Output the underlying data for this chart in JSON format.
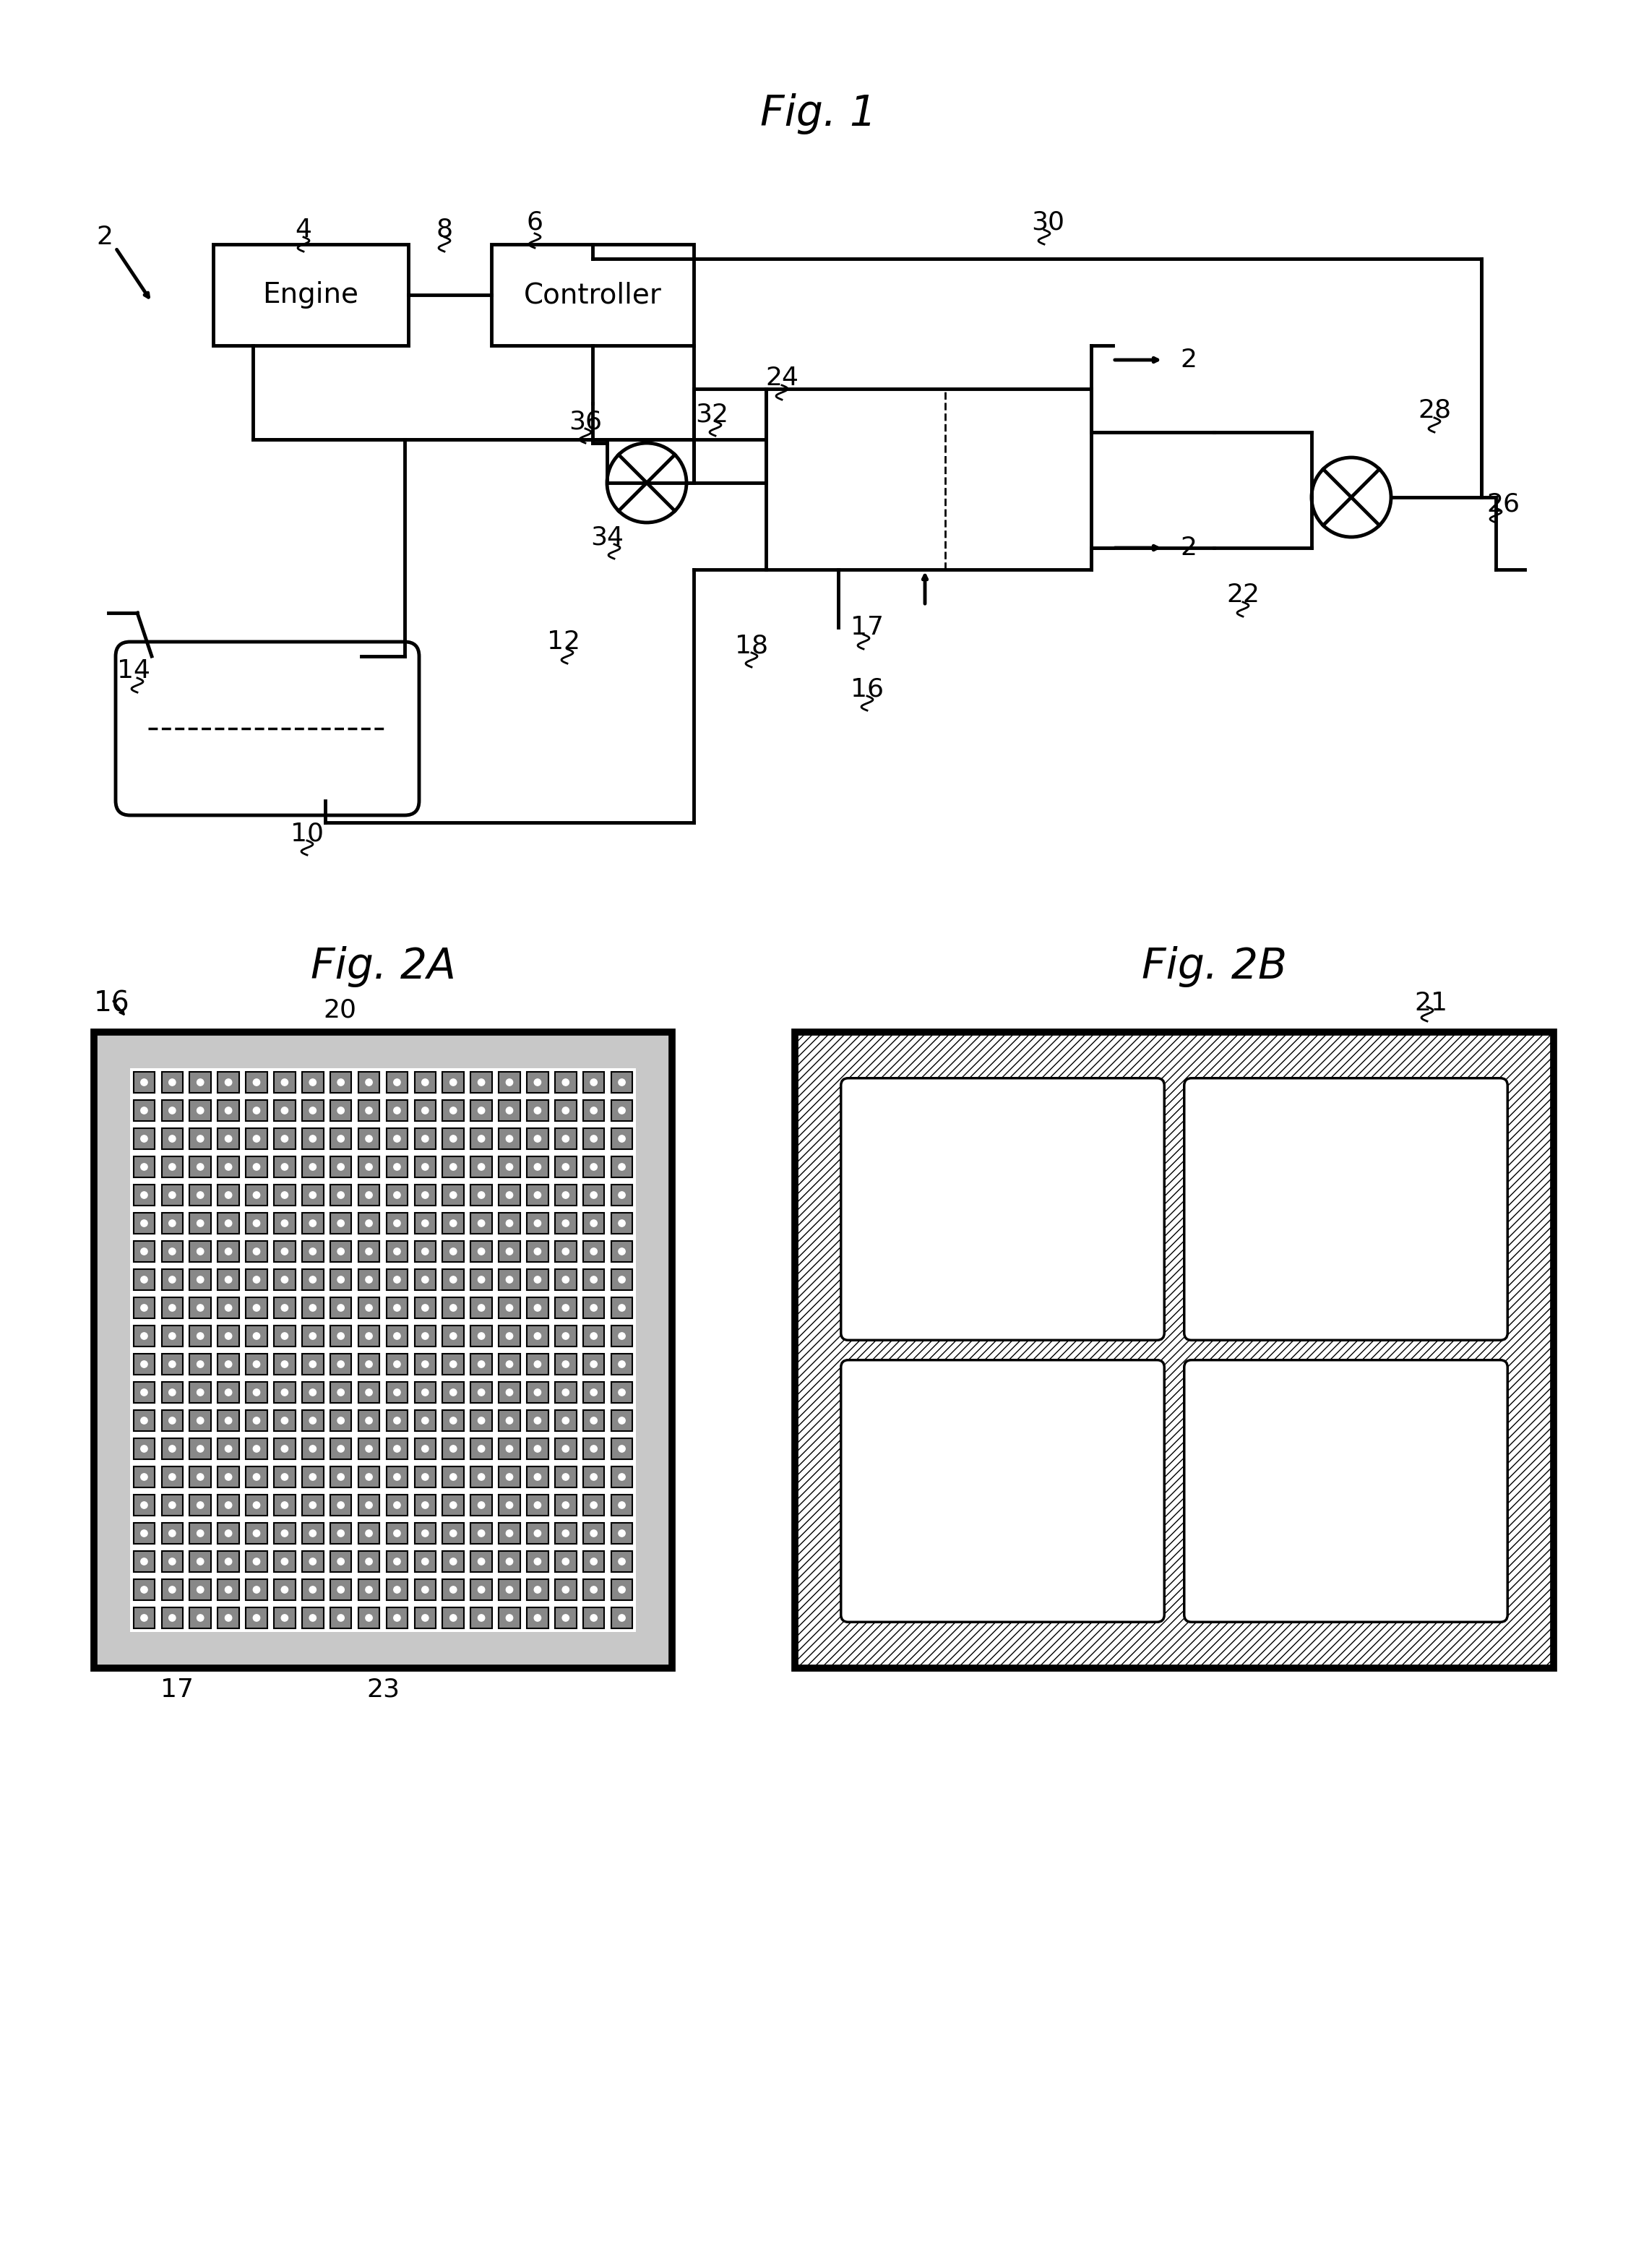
{
  "fig_title1": "Fig. 1",
  "fig_title2A": "Fig. 2A",
  "fig_title2B": "Fig. 2B",
  "bg_color": "#ffffff",
  "line_color": "#000000",
  "font_size_title": 36,
  "font_size_label": 24
}
